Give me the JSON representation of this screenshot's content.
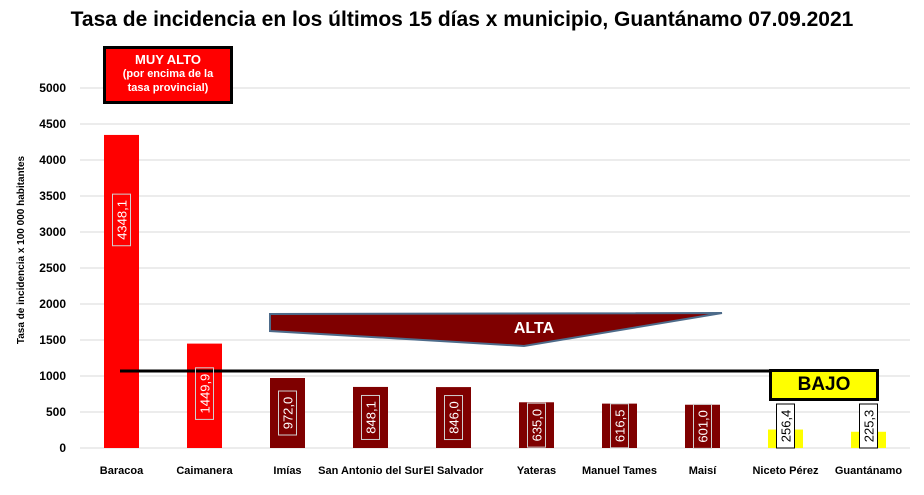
{
  "title": "Tasa de incidencia en los últimos 15 días x municipio, Guantánamo 07.09.2021",
  "annotations": {
    "muy_alto_title": "MUY ALTO",
    "muy_alto_sub1": "(por encima de la",
    "muy_alto_sub2": "tasa provincial)",
    "alta": "ALTA",
    "bajo": "BAJO"
  },
  "colors": {
    "very_high": "#ff0000",
    "high": "#7f0000",
    "low": "#ffff00",
    "grid": "#d9d9d9",
    "reference_line": "#000000"
  },
  "chart_data": {
    "type": "bar",
    "title": "Tasa de incidencia en los últimos 15 días x municipio, Guantánamo 07.09.2021",
    "xlabel": "",
    "ylabel": "Tasa de incidencia  x 100 000 habitantes",
    "ylim": [
      0,
      5000
    ],
    "yticks": [
      0,
      500,
      1000,
      1500,
      2000,
      2500,
      3000,
      3500,
      4000,
      4500,
      5000
    ],
    "grid": true,
    "categories": [
      "Baracoa",
      "Caimanera",
      "Imías",
      "San Antonio del Sur",
      "El Salvador",
      "Yateras",
      "Manuel Tames",
      "Maisí",
      "Niceto Pérez",
      "Guantánamo"
    ],
    "values": [
      4348.1,
      1449.9,
      972.0,
      848.1,
      846.0,
      635.0,
      616.5,
      601.0,
      256.4,
      225.3
    ],
    "data_labels": [
      "4348,1",
      "1449,9",
      "972,0",
      "848,1",
      "846,0",
      "635,0",
      "616,5",
      "601,0",
      "256,4",
      "225,3"
    ],
    "bar_colors": [
      "#ff0000",
      "#ff0000",
      "#7f0000",
      "#7f0000",
      "#7f0000",
      "#7f0000",
      "#7f0000",
      "#7f0000",
      "#ffff00",
      "#ffff00"
    ],
    "label_colors": [
      "#ffffff",
      "#ffffff",
      "#ffffff",
      "#ffffff",
      "#ffffff",
      "#ffffff",
      "#ffffff",
      "#ffffff",
      "#000000",
      "#000000"
    ],
    "reference_value": 1070
  }
}
